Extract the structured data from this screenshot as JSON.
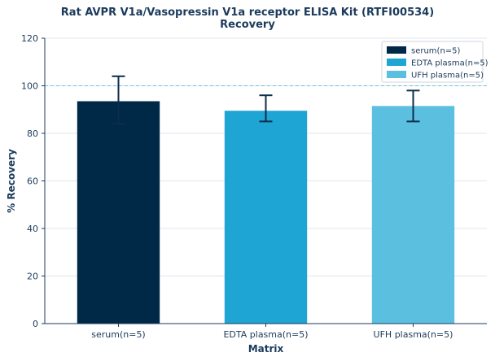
{
  "chart_data": {
    "type": "bar",
    "title": "Rat AVPR V1a/Vasopressin V1a receptor ELISA Kit (RTFI00534)",
    "subtitle": "Recovery",
    "xlabel": "Matrix",
    "ylabel": "% Recovery",
    "ylim": [
      0,
      120
    ],
    "yticks": [
      0,
      20,
      40,
      60,
      80,
      100,
      120
    ],
    "reference_line": 100,
    "grid": true,
    "legend_position": "top-right",
    "categories": [
      "serum(n=5)",
      "EDTA plasma(n=5)",
      "UFH plasma(n=5)"
    ],
    "values": [
      93.5,
      89.5,
      91.5
    ],
    "error_low": [
      84,
      85,
      85
    ],
    "error_high": [
      104,
      96,
      98
    ],
    "colors": [
      "#002847",
      "#1fa5d3",
      "#5bbfe0"
    ],
    "legend": [
      "serum(n=5)",
      "EDTA plasma(n=5)",
      "UFH plasma(n=5)"
    ]
  }
}
